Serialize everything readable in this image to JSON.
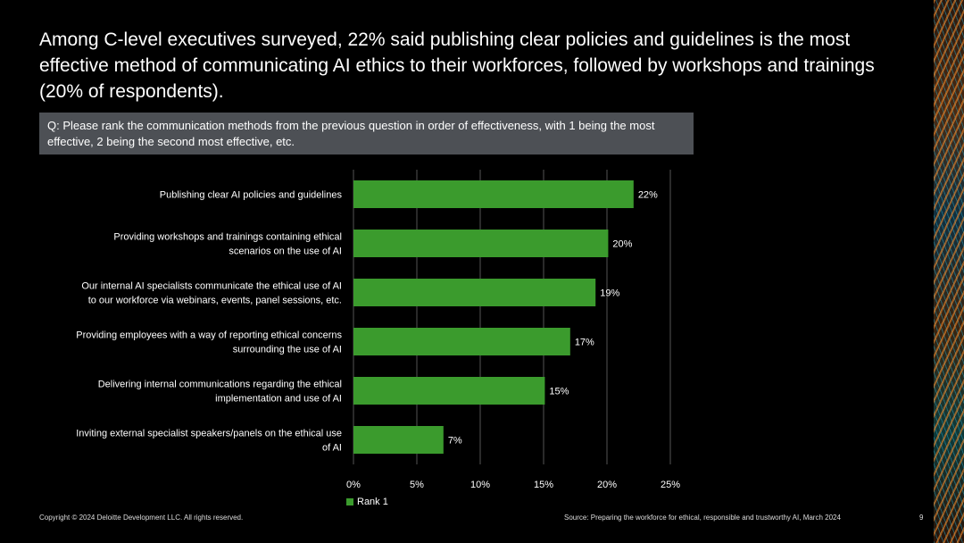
{
  "headline": "Among C-level executives surveyed, 22% said publishing clear policies and guidelines is the most effective method of communicating AI ethics to their workforces, followed by workshops and trainings (20% of respondents).",
  "question": "Q: Please rank the communication methods from the previous question in order of effectiveness, with 1 being the most effective, 2 being the second most effective, etc.",
  "footer": {
    "copyright": "Copyright © 2024 Deloitte Development LLC. All rights reserved.",
    "source": "Source: Preparing the workforce for ethical, responsible and trustworthy AI, March 2024",
    "page_number": "9"
  },
  "colors": {
    "bar": "#3b9b2d",
    "grid": "#555555",
    "background": "#000000"
  },
  "chart_data": {
    "type": "bar",
    "orientation": "horizontal",
    "categories": [
      [
        "Publishing clear AI policies and guidelines"
      ],
      [
        "Providing workshops and trainings containing ethical",
        "scenarios on the use of AI"
      ],
      [
        "Our internal AI specialists communicate the ethical use of AI",
        "to our workforce via webinars, events, panel sessions, etc."
      ],
      [
        "Providing employees with a way of reporting ethical concerns",
        "surrounding the use of AI"
      ],
      [
        "Delivering internal communications regarding the ethical",
        "implementation and use of AI"
      ],
      [
        "Inviting external specialist speakers/panels on the ethical use",
        "of AI"
      ]
    ],
    "series": [
      {
        "name": "Rank 1",
        "values": [
          22.1,
          20.1,
          19.1,
          17.1,
          15.1,
          7.1
        ],
        "labels": [
          "22%",
          "20%",
          "19%",
          "17%",
          "15%",
          "7%"
        ]
      }
    ],
    "xlim": [
      0,
      25
    ],
    "xticks": [
      0,
      5,
      10,
      15,
      20,
      25
    ],
    "xtick_labels": [
      "0%",
      "5%",
      "10%",
      "15%",
      "20%",
      "25%"
    ],
    "grid": true,
    "legend_position": "bottom-left"
  }
}
